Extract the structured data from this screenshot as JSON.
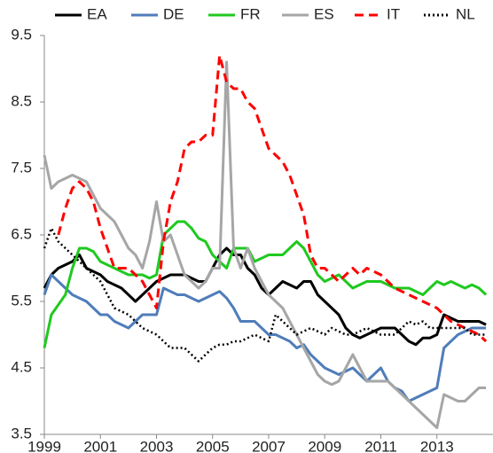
{
  "chart_data": {
    "type": "line",
    "x": [
      1999,
      1999.25,
      1999.5,
      1999.75,
      2000,
      2000.25,
      2000.5,
      2000.75,
      2001,
      2001.25,
      2001.5,
      2001.75,
      2002,
      2002.25,
      2002.5,
      2002.75,
      2003,
      2003.25,
      2003.5,
      2003.75,
      2004,
      2004.25,
      2004.5,
      2004.75,
      2005,
      2005.25,
      2005.5,
      2005.75,
      2006,
      2006.25,
      2006.5,
      2006.75,
      2007,
      2007.25,
      2007.5,
      2007.75,
      2008,
      2008.25,
      2008.5,
      2008.75,
      2009,
      2009.25,
      2009.5,
      2009.75,
      2010,
      2010.25,
      2010.5,
      2010.75,
      2011,
      2011.25,
      2011.5,
      2011.75,
      2012,
      2012.25,
      2012.5,
      2012.75,
      2013,
      2013.25,
      2013.5,
      2013.75,
      2014,
      2014.25,
      2014.5,
      2014.75
    ],
    "series": [
      {
        "name": "EA",
        "color": "#000000",
        "dash": "solid",
        "values": [
          5.7,
          5.9,
          6.0,
          6.05,
          6.1,
          6.2,
          6.0,
          5.95,
          5.9,
          5.8,
          5.75,
          5.7,
          5.6,
          5.5,
          5.6,
          5.7,
          5.8,
          5.85,
          5.9,
          5.9,
          5.9,
          5.85,
          5.8,
          5.8,
          6.0,
          6.2,
          6.3,
          6.2,
          6.2,
          6.0,
          5.9,
          5.7,
          5.6,
          5.7,
          5.8,
          5.75,
          5.7,
          5.8,
          5.8,
          5.6,
          5.5,
          5.4,
          5.3,
          5.1,
          5.0,
          4.95,
          5.0,
          5.05,
          5.1,
          5.1,
          5.1,
          5.0,
          4.9,
          4.85,
          4.95,
          4.95,
          5.0,
          5.3,
          5.25,
          5.2,
          5.2,
          5.2,
          5.2,
          5.15
        ]
      },
      {
        "name": "DE",
        "color": "#4f7dba",
        "dash": "solid",
        "values": [
          5.6,
          5.9,
          5.8,
          5.7,
          5.6,
          5.55,
          5.5,
          5.4,
          5.3,
          5.3,
          5.2,
          5.15,
          5.1,
          5.2,
          5.3,
          5.3,
          5.3,
          5.7,
          5.65,
          5.6,
          5.6,
          5.55,
          5.5,
          5.55,
          5.6,
          5.65,
          5.55,
          5.4,
          5.2,
          5.2,
          5.2,
          5.1,
          5.0,
          5.0,
          4.95,
          4.9,
          4.8,
          4.85,
          4.7,
          4.6,
          4.5,
          4.45,
          4.4,
          4.45,
          4.5,
          4.4,
          4.3,
          4.4,
          4.5,
          4.3,
          4.2,
          4.15,
          4.0,
          4.05,
          4.1,
          4.15,
          4.2,
          4.8,
          4.9,
          5.0,
          5.05,
          5.1,
          5.1,
          5.1
        ]
      },
      {
        "name": "FR",
        "color": "#1fc91f",
        "dash": "solid",
        "values": [
          4.8,
          5.3,
          5.45,
          5.6,
          6.0,
          6.3,
          6.3,
          6.25,
          6.1,
          6.05,
          6.0,
          5.95,
          5.9,
          5.9,
          5.9,
          5.85,
          5.9,
          6.5,
          6.6,
          6.7,
          6.7,
          6.6,
          6.45,
          6.4,
          6.2,
          6.1,
          6.0,
          6.3,
          6.3,
          6.3,
          6.1,
          6.15,
          6.2,
          6.2,
          6.2,
          6.3,
          6.4,
          6.3,
          6.1,
          5.9,
          5.8,
          5.85,
          5.9,
          5.8,
          5.7,
          5.75,
          5.8,
          5.8,
          5.8,
          5.75,
          5.7,
          5.7,
          5.7,
          5.65,
          5.6,
          5.7,
          5.8,
          5.75,
          5.8,
          5.75,
          5.7,
          5.75,
          5.7,
          5.6
        ]
      },
      {
        "name": "ES",
        "color": "#a6a6a6",
        "dash": "solid",
        "values": [
          7.7,
          7.2,
          7.3,
          7.35,
          7.4,
          7.35,
          7.3,
          7.1,
          6.9,
          6.8,
          6.7,
          6.5,
          6.3,
          6.2,
          6.0,
          6.4,
          7.0,
          6.4,
          6.5,
          6.2,
          5.9,
          5.8,
          5.7,
          5.8,
          6.0,
          6.0,
          9.1,
          6.3,
          6.0,
          6.3,
          6.0,
          5.8,
          5.6,
          5.5,
          5.4,
          5.2,
          5.0,
          4.8,
          4.6,
          4.4,
          4.3,
          4.25,
          4.3,
          4.5,
          4.7,
          4.5,
          4.3,
          4.3,
          4.3,
          4.3,
          4.2,
          4.1,
          4.0,
          3.9,
          3.8,
          3.7,
          3.6,
          4.1,
          4.05,
          4.0,
          4.0,
          4.1,
          4.2,
          4.2
        ]
      },
      {
        "name": "IT",
        "color": "#ff0000",
        "dash": "dashed",
        "values": [
          null,
          null,
          6.5,
          6.9,
          7.2,
          7.3,
          7.2,
          7.0,
          6.6,
          6.3,
          6.0,
          6.0,
          6.0,
          5.9,
          5.8,
          5.6,
          5.4,
          6.4,
          7.0,
          7.3,
          7.8,
          7.9,
          7.9,
          8.0,
          8.0,
          9.2,
          8.8,
          8.7,
          8.7,
          8.5,
          8.4,
          8.1,
          7.8,
          7.7,
          7.6,
          7.4,
          7.1,
          6.8,
          6.2,
          6.0,
          6.0,
          5.9,
          5.8,
          5.9,
          6.0,
          5.9,
          6.0,
          5.95,
          5.9,
          5.8,
          5.7,
          5.65,
          5.6,
          5.55,
          5.5,
          5.45,
          5.4,
          5.3,
          5.2,
          5.15,
          5.1,
          5.05,
          5.0,
          4.9
        ]
      },
      {
        "name": "NL",
        "color": "#000000",
        "dash": "dotted",
        "values": [
          6.3,
          6.6,
          6.4,
          6.3,
          6.2,
          6.1,
          6.0,
          5.9,
          5.8,
          5.6,
          5.4,
          5.35,
          5.3,
          5.2,
          5.1,
          5.05,
          5.0,
          4.9,
          4.8,
          4.8,
          4.8,
          4.7,
          4.6,
          4.7,
          4.8,
          4.85,
          4.85,
          4.9,
          4.9,
          4.95,
          5.0,
          4.95,
          4.9,
          5.3,
          5.2,
          5.1,
          5.0,
          5.05,
          5.1,
          5.05,
          5.0,
          5.1,
          5.05,
          5.0,
          5.0,
          5.05,
          5.1,
          5.05,
          5.0,
          5.0,
          5.0,
          5.1,
          5.2,
          5.15,
          5.2,
          5.1,
          5.1,
          5.1,
          5.1,
          5.1,
          5.1,
          5.0,
          5.0,
          5.0
        ]
      }
    ],
    "xlim": [
      1999,
      2015
    ],
    "xticks": [
      1999,
      2001,
      2003,
      2005,
      2007,
      2009,
      2011,
      2013
    ],
    "ylim": [
      3.5,
      9.5
    ],
    "yticks": [
      3.5,
      4.5,
      5.5,
      6.5,
      7.5,
      8.5,
      9.5
    ],
    "grid": false,
    "legend": "top"
  }
}
